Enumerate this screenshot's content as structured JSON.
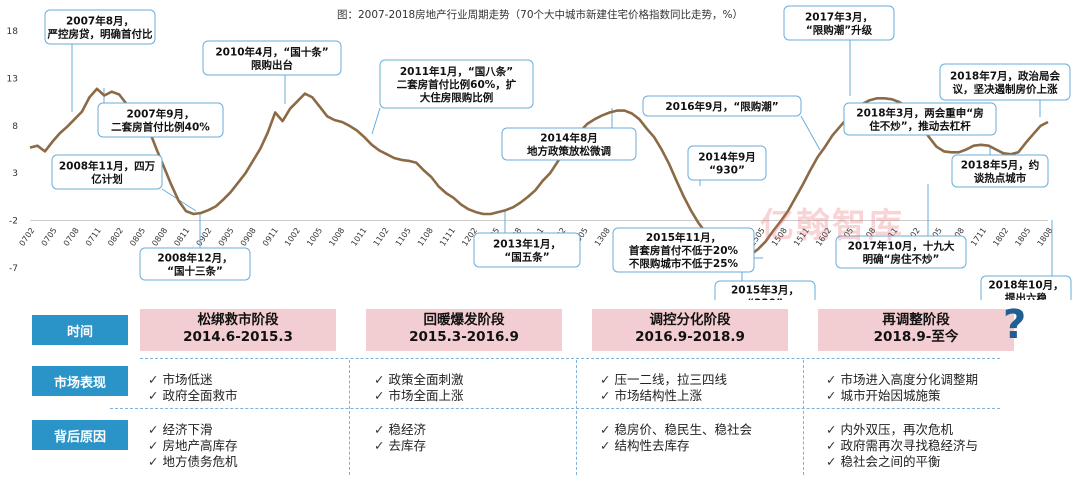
{
  "chart_data": {
    "type": "line",
    "title": "图：2007-2018房地产行业周期走势（70个大中城市新建住宅价格指数同比走势，%）",
    "ylim": [
      -7,
      18
    ],
    "yticks": [
      18,
      13,
      8,
      3,
      -2,
      -7
    ],
    "x_tick_labels": [
      "0702",
      "0705",
      "0708",
      "0711",
      "0802",
      "0805",
      "0808",
      "0811",
      "0902",
      "0905",
      "0908",
      "0911",
      "1002",
      "1005",
      "1008",
      "1011",
      "1102",
      "1105",
      "1108",
      "1111",
      "1202",
      "1205",
      "1208",
      "1211",
      "1302",
      "1305",
      "1308",
      "1311",
      "1402",
      "1405",
      "1408",
      "1411",
      "1502",
      "1505",
      "1508",
      "1511",
      "1602",
      "1605",
      "1608",
      "1611",
      "1702",
      "1705",
      "1708",
      "1711",
      "1802",
      "1805",
      "1808"
    ],
    "series": [
      {
        "name": "70个大中城市新建住宅价格指数同比",
        "color": "#8b6a45",
        "values": [
          5.7,
          5.9,
          5.3,
          6.3,
          7.2,
          7.9,
          8.7,
          9.5,
          11.0,
          11.9,
          11.2,
          11.6,
          11.3,
          10.3,
          10.0,
          9.3,
          7.6,
          5.6,
          3.7,
          1.8,
          0.1,
          -1.0,
          -1.3,
          -1.2,
          -0.9,
          -0.5,
          0.2,
          1.0,
          2.0,
          3.0,
          4.3,
          5.6,
          7.3,
          9.4,
          8.5,
          9.8,
          10.6,
          11.4,
          11.0,
          10.0,
          9.0,
          8.6,
          8.4,
          8.0,
          7.5,
          6.8,
          6.0,
          5.4,
          5.0,
          4.6,
          4.4,
          4.3,
          4.1,
          3.3,
          2.6,
          1.6,
          0.9,
          0.4,
          -0.3,
          -0.8,
          -1.1,
          -1.3,
          -1.3,
          -1.1,
          -0.9,
          -0.6,
          -0.1,
          0.5,
          1.2,
          2.2,
          3.0,
          4.2,
          5.4,
          6.5,
          7.4,
          8.2,
          8.7,
          9.1,
          9.4,
          9.6,
          9.6,
          9.3,
          8.7,
          7.7,
          6.8,
          5.5,
          4.0,
          2.2,
          0.5,
          -1.0,
          -2.3,
          -3.3,
          -4.2,
          -5.1,
          -5.6,
          -5.8,
          -5.9,
          -5.6,
          -5.0,
          -4.2,
          -3.1,
          -2.1,
          -1.0,
          0.4,
          1.8,
          3.3,
          4.7,
          5.8,
          7.0,
          7.9,
          8.8,
          9.8,
          10.3,
          10.7,
          10.9,
          10.9,
          10.8,
          10.5,
          10.0,
          9.3,
          7.9,
          6.8,
          5.8,
          5.3,
          5.2,
          5.2,
          5.5,
          5.9,
          6.0,
          5.9,
          5.5,
          5.1,
          5.0,
          5.2,
          6.2,
          7.1,
          8.0,
          8.4
        ]
      }
    ],
    "annotations": [
      {
        "id": "a1",
        "lines": [
          "2007年8月，",
          "严控房贷，明确首付比"
        ]
      },
      {
        "id": "a2",
        "lines": [
          "2007年9月，",
          "二套房首付比例40%"
        ]
      },
      {
        "id": "a3",
        "lines": [
          "2008年11月，四万",
          "亿计划"
        ]
      },
      {
        "id": "a4",
        "lines": [
          "2008年12月，",
          "“国十三条”"
        ]
      },
      {
        "id": "a5",
        "lines": [
          "2010年4月，“国十条”",
          "限购出台"
        ]
      },
      {
        "id": "a6",
        "lines": [
          "2011年1月，“国八条”",
          "二套房首付比例60%，扩",
          "大住房限购比例"
        ]
      },
      {
        "id": "a7",
        "lines": [
          "2013年1月，",
          "“国五条”"
        ]
      },
      {
        "id": "a8",
        "lines": [
          "2014年8月",
          "地方政策放松微调"
        ]
      },
      {
        "id": "a9",
        "lines": [
          "2014年9月",
          "“930”"
        ]
      },
      {
        "id": "a10",
        "lines": [
          "2015年11月，",
          "首套房首付不低于20%",
          "不限购城市不低于25%"
        ]
      },
      {
        "id": "a11",
        "lines": [
          "2015年3月，",
          "“330”"
        ]
      },
      {
        "id": "a12",
        "lines": [
          "2016年9月，“限购潮”"
        ]
      },
      {
        "id": "a13",
        "lines": [
          "2017年3月，",
          "“限购潮”升级"
        ]
      },
      {
        "id": "a14",
        "lines": [
          "2018年3月，两会重申“房",
          "住不炒”，推动去杠杆"
        ]
      },
      {
        "id": "a15",
        "lines": [
          "2018年7月，政治局会",
          "议，坚决遏制房价上涨"
        ]
      },
      {
        "id": "a16",
        "lines": [
          "2018年5月，约",
          "谈热点城市"
        ]
      },
      {
        "id": "a17",
        "lines": [
          "2017年10月，十九大",
          "明确“房住不炒”"
        ]
      },
      {
        "id": "a18",
        "lines": [
          "2018年10月，",
          "提出六稳"
        ]
      }
    ]
  },
  "table": {
    "row_labels": {
      "time": "时间",
      "market": "市场表现",
      "reason": "背后原因"
    },
    "stages": [
      {
        "name": "松绑救市阶段",
        "period": "2014.6-2015.3",
        "market": [
          "市场低迷",
          "政府全面救市"
        ],
        "reason": [
          "经济下滑",
          "房地产高库存",
          "地方债务危机"
        ]
      },
      {
        "name": "回暖爆发阶段",
        "period": "2015.3-2016.9",
        "market": [
          "政策全面刺激",
          "市场全面上涨"
        ],
        "reason": [
          "稳经济",
          "去库存"
        ]
      },
      {
        "name": "调控分化阶段",
        "period": "2016.9-2018.9",
        "market": [
          "压一二线，拉三四线",
          "市场结构性上涨"
        ],
        "reason": [
          "稳房价、稳民生、稳社会",
          "结构性去库存"
        ]
      },
      {
        "name": "再调整阶段",
        "period": "2018.9-至今",
        "market": [
          "市场进入高度分化调整期",
          "城市开始因城施策"
        ],
        "reason": [
          "内外双压，再次危机",
          "政府需再次寻找稳经济与",
          "稳社会之间的平衡"
        ]
      }
    ],
    "question_mark": "?"
  },
  "watermark": "亿翰智库",
  "colors": {
    "line": "#8b6a45",
    "label_bg": "#2a93c7",
    "stage_bg": "#f2cdd1",
    "box_border": "#6aaedb"
  }
}
